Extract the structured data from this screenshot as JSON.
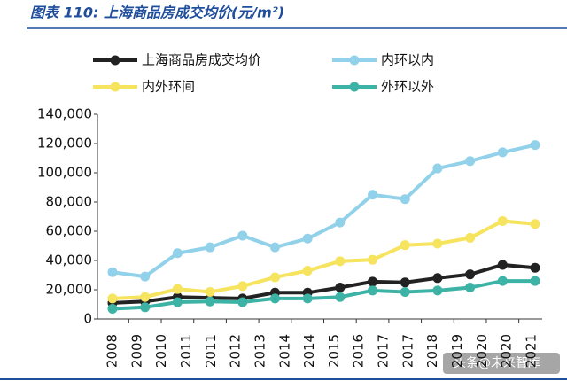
{
  "chart_data": {
    "type": "line",
    "title": "图表 110: 上海商品房成交均价(元/m²)",
    "xtick_labels": [
      "2008",
      "2009",
      "2010",
      "2011",
      "2011",
      "2012",
      "2013",
      "2014",
      "2014",
      "2015",
      "2016",
      "2017",
      "2017",
      "2018",
      "2019",
      "2020",
      "2020",
      "2021"
    ],
    "series": [
      {
        "name": "上海商品房成交均价",
        "color": "#222222",
        "values": [
          11000,
          12000,
          15000,
          14500,
          14000,
          18000,
          18000,
          21500,
          25500,
          25000,
          28000,
          30500,
          37000,
          35000
        ]
      },
      {
        "name": "内环以内",
        "color": "#92d1ea",
        "values": [
          32000,
          29000,
          45000,
          49000,
          57000,
          49000,
          55000,
          66000,
          85000,
          82000,
          103000,
          108000,
          114000,
          119000
        ]
      },
      {
        "name": "内外环间",
        "color": "#f6e35e",
        "values": [
          14000,
          15000,
          20500,
          18500,
          22500,
          28500,
          33000,
          39500,
          40500,
          50500,
          51500,
          55500,
          67000,
          65000
        ]
      },
      {
        "name": "外环以外",
        "color": "#3db3a6",
        "values": [
          7000,
          8000,
          11500,
          12000,
          11500,
          14000,
          14000,
          15000,
          19500,
          18500,
          19500,
          21500,
          26000,
          26000
        ]
      }
    ],
    "ylim": [
      0,
      140000
    ],
    "yticks": [
      0,
      {
        "value": 20000,
        "label": "20,000"
      },
      {
        "value": 40000,
        "label": "40,000"
      },
      {
        "value": 60000,
        "label": "60,000"
      },
      {
        "value": 80000,
        "label": "80,000"
      },
      {
        "value": 100000,
        "label": "100,000"
      },
      {
        "value": 120000,
        "label": "120,000"
      },
      {
        "value": 140000,
        "label": "140,000"
      }
    ],
    "watermark": "头条@未来智库"
  }
}
